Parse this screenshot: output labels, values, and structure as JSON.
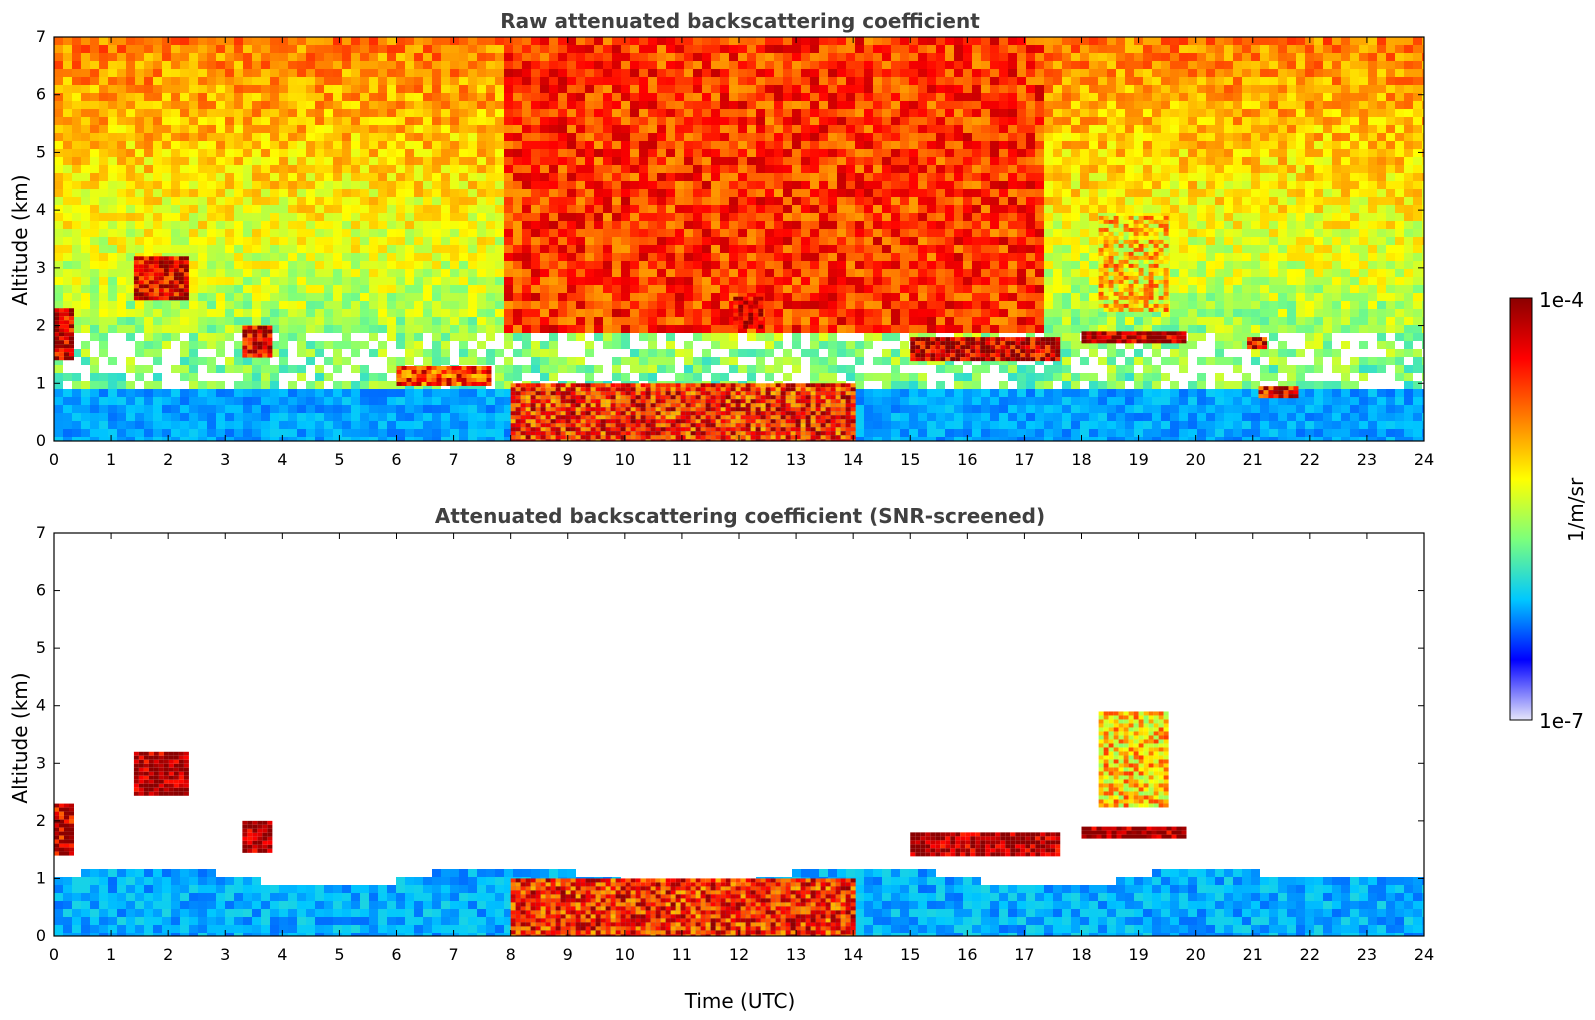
{
  "chart_data": [
    {
      "type": "heatmap",
      "title": "Raw attenuated backscattering coefficient",
      "xlabel": "",
      "ylabel": "Altitude (km)",
      "xlim": [
        0,
        24
      ],
      "ylim": [
        0,
        7
      ],
      "xticks": [
        0,
        1,
        2,
        3,
        4,
        5,
        6,
        7,
        8,
        9,
        10,
        11,
        12,
        13,
        14,
        15,
        16,
        17,
        18,
        19,
        20,
        21,
        22,
        23,
        24
      ],
      "yticks": [
        0,
        1,
        2,
        3,
        4,
        5,
        6,
        7
      ],
      "grid": false,
      "features": [
        {
          "x0": 0.0,
          "x1": 0.35,
          "y0": 1.4,
          "y1": 2.3,
          "level": 0.92
        },
        {
          "x0": 1.4,
          "x1": 2.3,
          "y0": 2.5,
          "y1": 3.2,
          "level": 0.9
        },
        {
          "x0": 3.3,
          "x1": 3.8,
          "y0": 1.5,
          "y1": 2.0,
          "level": 0.9
        },
        {
          "x0": 6.0,
          "x1": 7.6,
          "y0": 1.0,
          "y1": 1.3,
          "level": 0.8
        },
        {
          "x0": 8.0,
          "x1": 14.0,
          "y0": 0.0,
          "y1": 1.0,
          "level": 0.82
        },
        {
          "x0": 11.9,
          "x1": 12.4,
          "y0": 2.0,
          "y1": 2.5,
          "level": 0.92
        },
        {
          "x0": 15.0,
          "x1": 17.6,
          "y0": 1.4,
          "y1": 1.8,
          "level": 0.92
        },
        {
          "x0": 18.0,
          "x1": 19.8,
          "y0": 1.7,
          "y1": 1.9,
          "level": 0.95
        },
        {
          "x0": 18.3,
          "x1": 19.5,
          "y0": 2.3,
          "y1": 3.9,
          "level": 0.62
        },
        {
          "x0": 20.9,
          "x1": 21.2,
          "y0": 1.6,
          "y1": 1.8,
          "level": 0.88
        },
        {
          "x0": 21.1,
          "x1": 21.8,
          "y0": 0.8,
          "y1": 0.95,
          "level": 0.85
        }
      ],
      "background_noise": {
        "x0": 7.8,
        "x1": 17.2,
        "y0": 2.0,
        "y1": 7.0,
        "level": 0.78
      }
    },
    {
      "type": "heatmap",
      "title": "Attenuated backscattering coefficient (SNR-screened)",
      "xlabel": "Time (UTC)",
      "ylabel": "Altitude (km)",
      "xlim": [
        0,
        24
      ],
      "ylim": [
        0,
        7
      ],
      "xticks": [
        0,
        1,
        2,
        3,
        4,
        5,
        6,
        7,
        8,
        9,
        10,
        11,
        12,
        13,
        14,
        15,
        16,
        17,
        18,
        19,
        20,
        21,
        22,
        23,
        24
      ],
      "yticks": [
        0,
        1,
        2,
        3,
        4,
        5,
        6,
        7
      ],
      "grid": false,
      "features": [
        {
          "x0": 0.0,
          "x1": 0.35,
          "y0": 1.4,
          "y1": 2.3,
          "level": 0.92
        },
        {
          "x0": 1.4,
          "x1": 2.3,
          "y0": 2.5,
          "y1": 3.2,
          "level": 0.98
        },
        {
          "x0": 3.3,
          "x1": 3.8,
          "y0": 1.5,
          "y1": 2.0,
          "level": 0.98
        },
        {
          "x0": 8.0,
          "x1": 14.0,
          "y0": 0.0,
          "y1": 1.0,
          "level": 0.82
        },
        {
          "x0": 15.0,
          "x1": 17.6,
          "y0": 1.4,
          "y1": 1.8,
          "level": 0.98
        },
        {
          "x0": 18.0,
          "x1": 19.8,
          "y0": 1.7,
          "y1": 1.9,
          "level": 0.99
        },
        {
          "x0": 18.3,
          "x1": 19.5,
          "y0": 2.3,
          "y1": 3.9,
          "level": 0.62
        }
      ]
    }
  ],
  "colorbar": {
    "label": "1/m/sr",
    "min_label": "1e-7",
    "max_label": "1e-4",
    "scale": "log",
    "colors": [
      "#e6e6fa",
      "#0000ff",
      "#00c8ff",
      "#7cff7c",
      "#ffff00",
      "#ff7f00",
      "#ff0000",
      "#8b0000"
    ]
  }
}
